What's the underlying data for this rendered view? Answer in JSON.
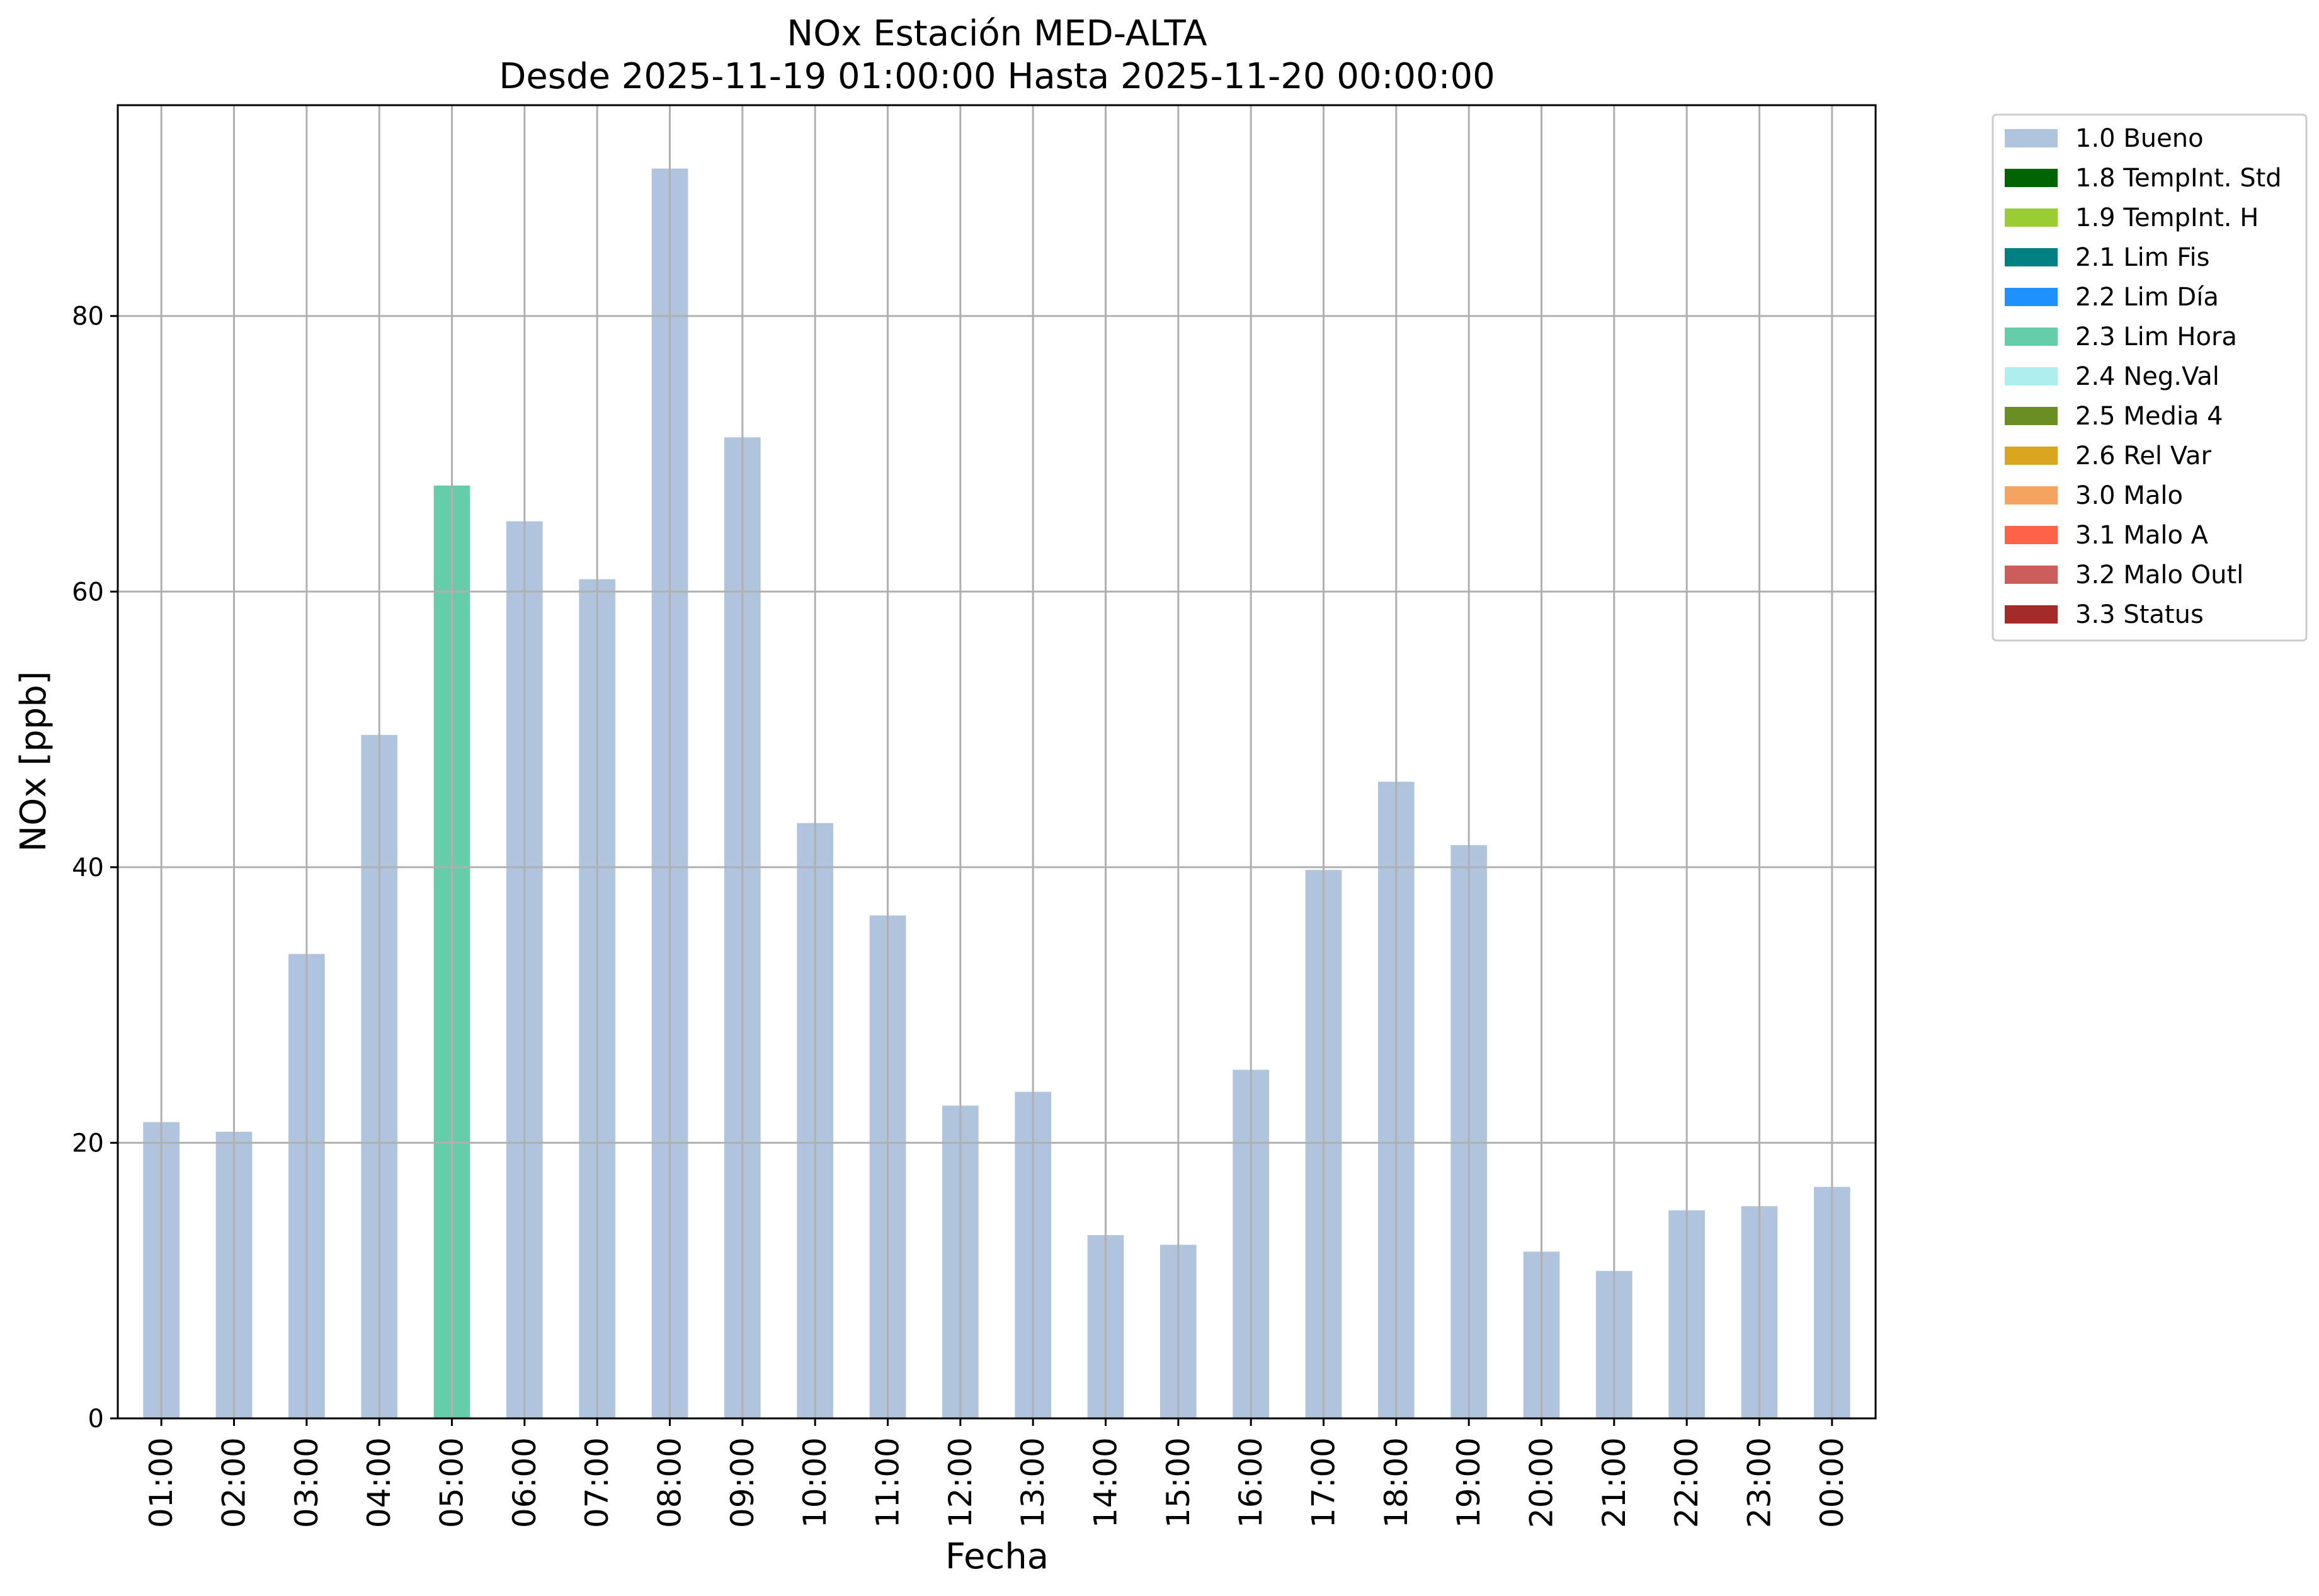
{
  "chart_data": {
    "type": "bar",
    "title": "NOx Estación MED-ALTA",
    "subtitle": "Desde 2025-11-19 01:00:00 Hasta 2025-11-20 00:00:00",
    "xlabel": "Fecha",
    "ylabel": "NOx [ppb]",
    "ylim": [
      0,
      95.3
    ],
    "yticks": [
      0,
      20,
      40,
      60,
      80
    ],
    "grid": true,
    "legend_position": "outside-right-top",
    "categories": [
      "01:00",
      "02:00",
      "03:00",
      "04:00",
      "05:00",
      "06:00",
      "07:00",
      "08:00",
      "09:00",
      "10:00",
      "11:00",
      "12:00",
      "13:00",
      "14:00",
      "15:00",
      "16:00",
      "17:00",
      "18:00",
      "19:00",
      "20:00",
      "21:00",
      "22:00",
      "23:00",
      "00:00"
    ],
    "values": [
      21.5,
      20.8,
      33.7,
      49.6,
      67.7,
      65.1,
      60.9,
      90.7,
      71.2,
      43.2,
      36.5,
      22.7,
      23.7,
      13.3,
      12.6,
      25.3,
      39.8,
      46.2,
      41.6,
      12.1,
      10.7,
      15.1,
      15.4,
      16.8
    ],
    "flags": [
      "1.0",
      "1.0",
      "1.0",
      "1.0",
      "2.3",
      "1.0",
      "1.0",
      "1.0",
      "1.0",
      "1.0",
      "1.0",
      "1.0",
      "1.0",
      "1.0",
      "1.0",
      "1.0",
      "1.0",
      "1.0",
      "1.0",
      "1.0",
      "1.0",
      "1.0",
      "1.0",
      "1.0"
    ],
    "legend": [
      {
        "code": "1.0",
        "label": "1.0 Bueno",
        "color": "#b0c4de"
      },
      {
        "code": "1.8",
        "label": "1.8 TempInt. Std",
        "color": "#006400"
      },
      {
        "code": "1.9",
        "label": "1.9 TempInt. H",
        "color": "#9acd32"
      },
      {
        "code": "2.1",
        "label": "2.1 Lim Fis",
        "color": "#008080"
      },
      {
        "code": "2.2",
        "label": "2.2 Lim Día",
        "color": "#1e90ff"
      },
      {
        "code": "2.3",
        "label": "2.3 Lim Hora",
        "color": "#66cdaa"
      },
      {
        "code": "2.4",
        "label": "2.4 Neg.Val",
        "color": "#afeeee"
      },
      {
        "code": "2.5",
        "label": "2.5 Media 4",
        "color": "#6b8e23"
      },
      {
        "code": "2.6",
        "label": "2.6 Rel Var",
        "color": "#daa520"
      },
      {
        "code": "3.0",
        "label": "3.0 Malo",
        "color": "#f4a460"
      },
      {
        "code": "3.1",
        "label": "3.1 Malo A",
        "color": "#ff6347"
      },
      {
        "code": "3.2",
        "label": "3.2 Malo Outl",
        "color": "#cd5c5c"
      },
      {
        "code": "3.3",
        "label": "3.3 Status",
        "color": "#a52a2a"
      }
    ]
  }
}
